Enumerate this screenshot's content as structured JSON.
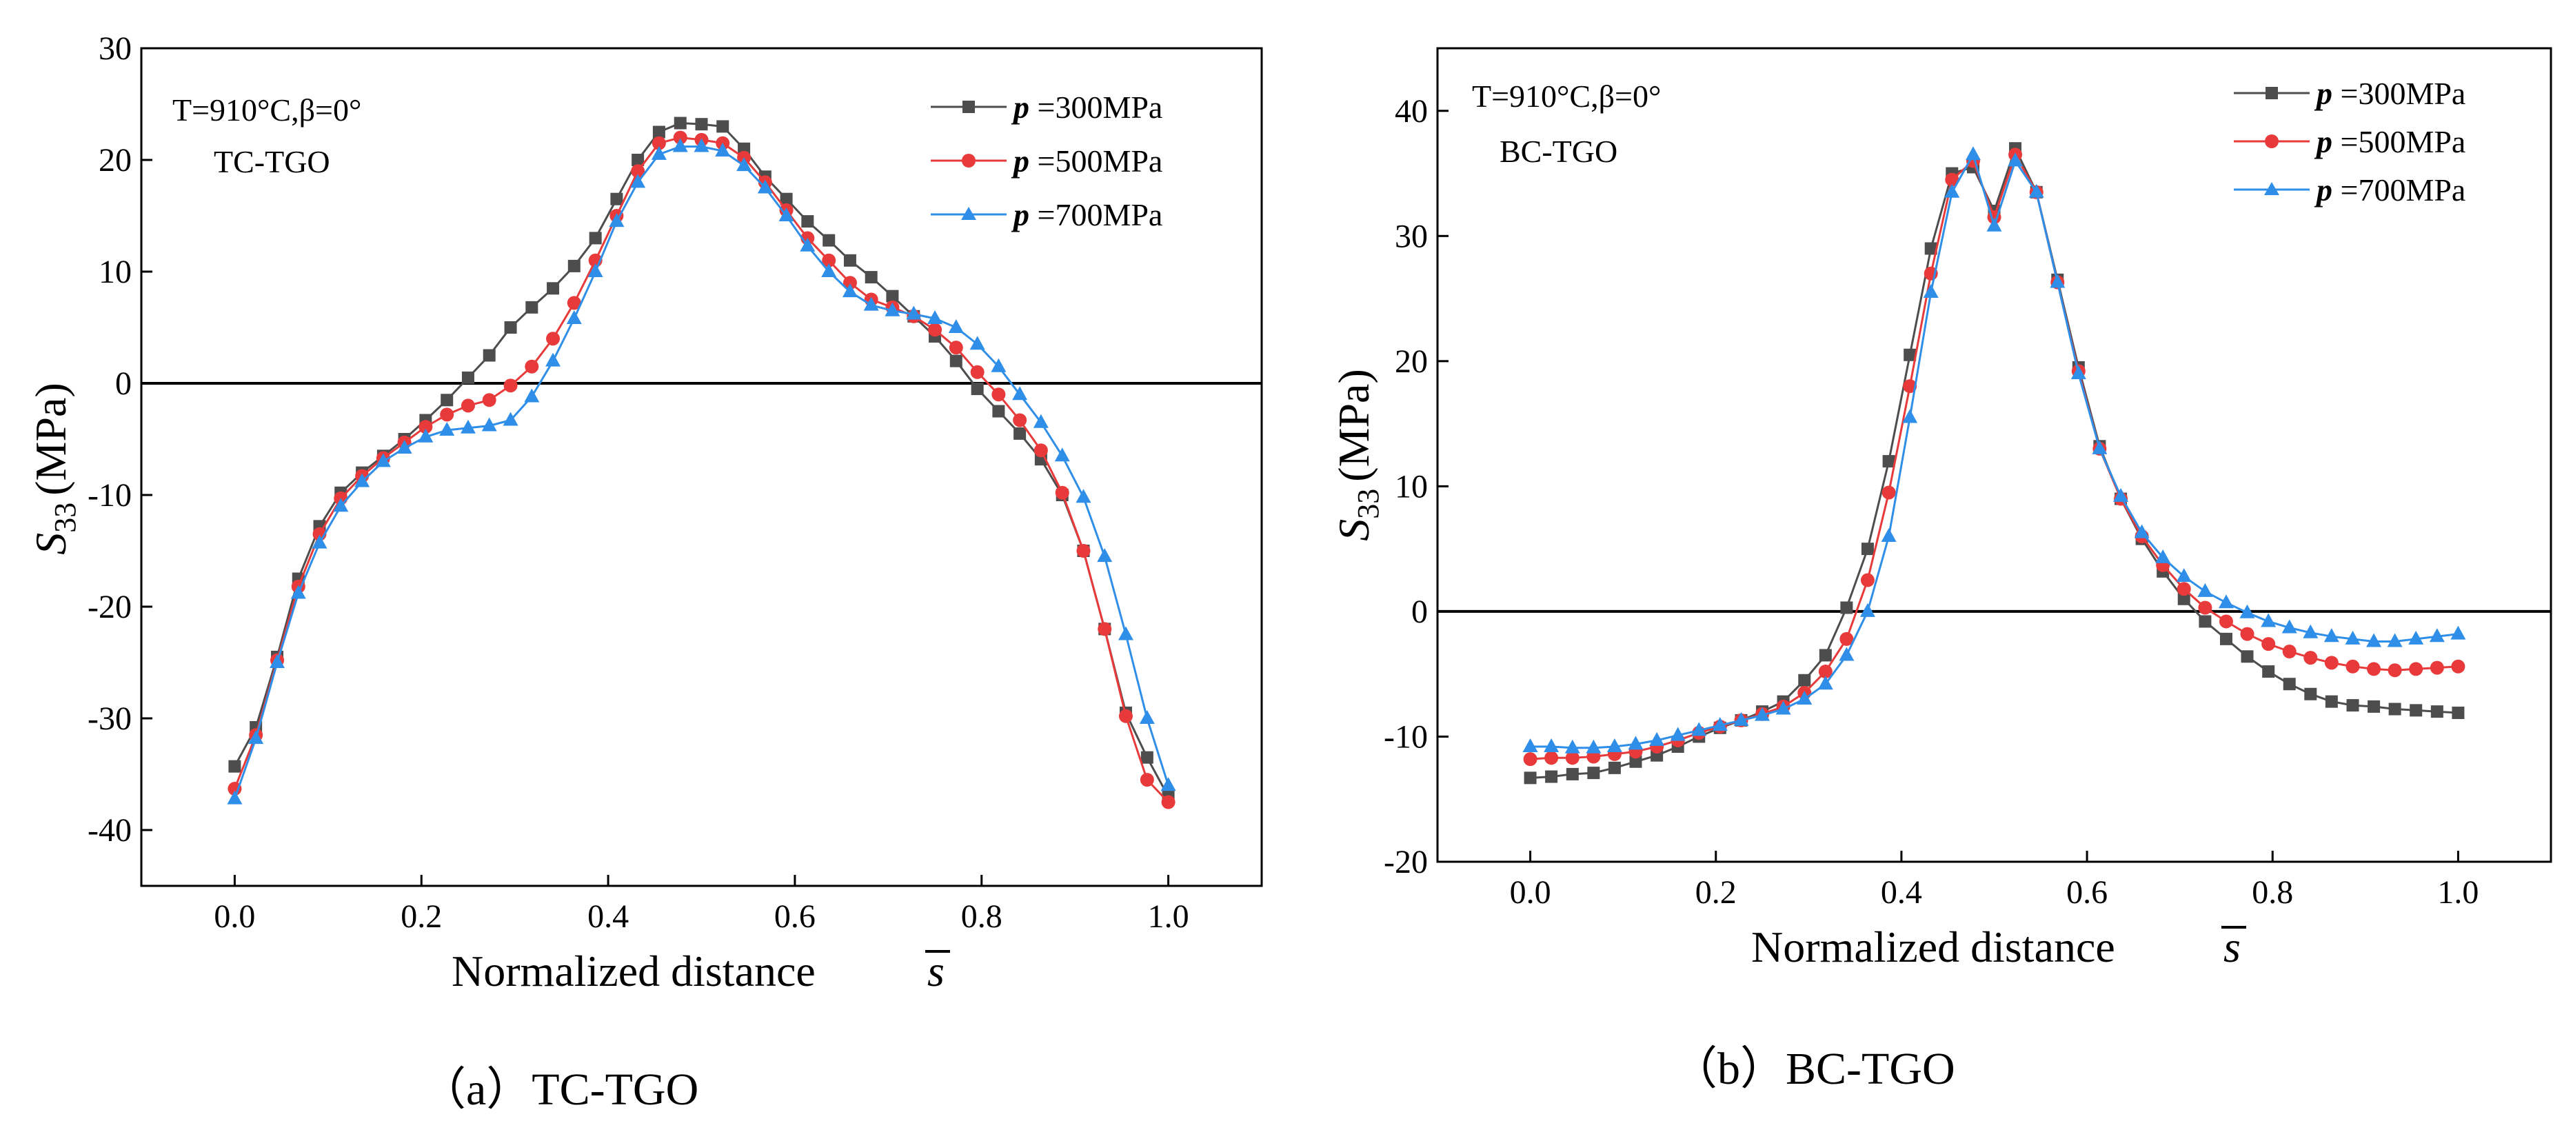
{
  "chart_data": [
    {
      "type": "line",
      "caption": "（a）TC-TGO",
      "title": "",
      "annotation": {
        "condition": "T=910°C,β=0°",
        "label": "TC-TGO"
      },
      "xlabel": "Normalized distance",
      "xsymbol": "s",
      "ylabel_symbol": "S",
      "ylabel_sub": "33",
      "ylabel_unit": "(MPa)",
      "xlim": [
        -0.1,
        1.1
      ],
      "ylim": [
        -45,
        30
      ],
      "xticks": [
        0.0,
        0.2,
        0.4,
        0.6,
        0.8,
        1.0
      ],
      "xtick_labels": [
        "0.0",
        "0.2",
        "0.4",
        "0.6",
        "0.8",
        "1.0"
      ],
      "yticks": [
        -40,
        -30,
        -20,
        -10,
        0,
        10,
        20,
        30
      ],
      "ytick_labels": [
        "-40",
        "-30",
        "-20",
        "-10",
        "0",
        "10",
        "20",
        "30"
      ],
      "reference_line_y": 0,
      "legend_position": "top-right",
      "x": [
        0.0,
        0.0227,
        0.0455,
        0.0682,
        0.0909,
        0.1136,
        0.1364,
        0.1591,
        0.1818,
        0.2045,
        0.2273,
        0.25,
        0.2727,
        0.2955,
        0.3182,
        0.3409,
        0.3636,
        0.3864,
        0.4091,
        0.4318,
        0.4545,
        0.4773,
        0.5,
        0.5227,
        0.5455,
        0.5682,
        0.5909,
        0.6136,
        0.6364,
        0.6591,
        0.6818,
        0.7045,
        0.7273,
        0.75,
        0.7727,
        0.7955,
        0.8182,
        0.8409,
        0.8636,
        0.8864,
        0.9091,
        0.9318,
        0.9545,
        0.9773,
        1.0
      ],
      "series": [
        {
          "name": "p =300MPa",
          "prefix": "p",
          "suffix": " =300MPa",
          "color": "#4d4d4d",
          "marker": "square",
          "values": [
            -34.3,
            -30.8,
            -24.5,
            -17.5,
            -12.8,
            -9.8,
            -8.0,
            -6.5,
            -5.0,
            -3.3,
            -1.5,
            0.5,
            2.5,
            5.0,
            6.8,
            8.5,
            10.5,
            13.0,
            16.5,
            20.0,
            22.5,
            23.3,
            23.2,
            23.0,
            21.0,
            18.5,
            16.5,
            14.5,
            12.8,
            11.0,
            9.5,
            7.8,
            6.0,
            4.2,
            2.0,
            -0.5,
            -2.5,
            -4.5,
            -6.8,
            -10.0,
            -15.0,
            -22.0,
            -29.5,
            -33.5,
            -37.0
          ]
        },
        {
          "name": "p =500MPa",
          "prefix": "p",
          "suffix": " =500MPa",
          "color": "#e83a3a",
          "marker": "circle",
          "values": [
            -36.3,
            -31.5,
            -24.8,
            -18.2,
            -13.5,
            -10.3,
            -8.3,
            -6.7,
            -5.3,
            -3.9,
            -2.8,
            -2.0,
            -1.5,
            -0.2,
            1.5,
            4.0,
            7.2,
            11.0,
            15.0,
            19.0,
            21.5,
            22.0,
            21.8,
            21.5,
            20.2,
            18.0,
            15.5,
            13.0,
            11.0,
            9.0,
            7.5,
            6.8,
            6.0,
            4.8,
            3.2,
            1.0,
            -1.0,
            -3.3,
            -6.0,
            -9.8,
            -15.0,
            -22.0,
            -29.8,
            -35.5,
            -37.5
          ]
        },
        {
          "name": "p =700MPa",
          "prefix": "p",
          "suffix": " =700MPa",
          "color": "#2f8fe8",
          "marker": "triangle",
          "values": [
            -37.2,
            -31.8,
            -25.0,
            -18.8,
            -14.3,
            -11.0,
            -8.8,
            -7.0,
            -5.8,
            -4.8,
            -4.2,
            -4.0,
            -3.8,
            -3.3,
            -1.2,
            2.0,
            5.8,
            10.0,
            14.5,
            18.0,
            20.5,
            21.2,
            21.2,
            20.8,
            19.5,
            17.5,
            15.0,
            12.3,
            10.0,
            8.2,
            7.0,
            6.5,
            6.2,
            5.8,
            5.0,
            3.5,
            1.5,
            -1.0,
            -3.5,
            -6.5,
            -10.2,
            -15.5,
            -22.5,
            -30.0,
            -36.0
          ]
        }
      ]
    },
    {
      "type": "line",
      "caption": "（b）BC-TGO",
      "title": "",
      "annotation": {
        "condition": "T=910°C,β=0°",
        "label": "BC-TGO"
      },
      "xlabel": "Normalized distance",
      "xsymbol": "s",
      "ylabel_symbol": "S",
      "ylabel_sub": "33",
      "ylabel_unit": "(MPa)",
      "xlim": [
        -0.1,
        1.1
      ],
      "ylim": [
        -20,
        45
      ],
      "xticks": [
        0.0,
        0.2,
        0.4,
        0.6,
        0.8,
        1.0
      ],
      "xtick_labels": [
        "0.0",
        "0.2",
        "0.4",
        "0.6",
        "0.8",
        "1.0"
      ],
      "yticks": [
        -20,
        -10,
        0,
        10,
        20,
        30,
        40
      ],
      "ytick_labels": [
        "-20",
        "-10",
        "0",
        "10",
        "20",
        "30",
        "40"
      ],
      "reference_line_y": 0,
      "legend_position": "top-right",
      "x": [
        0.0,
        0.0227,
        0.0455,
        0.0682,
        0.0909,
        0.1136,
        0.1364,
        0.1591,
        0.1818,
        0.2045,
        0.2273,
        0.25,
        0.2727,
        0.2955,
        0.3182,
        0.3409,
        0.3636,
        0.3864,
        0.4091,
        0.4318,
        0.4545,
        0.4773,
        0.5,
        0.5227,
        0.5455,
        0.5682,
        0.5909,
        0.6136,
        0.6364,
        0.6591,
        0.6818,
        0.7045,
        0.7273,
        0.75,
        0.7727,
        0.7955,
        0.8182,
        0.8409,
        0.8636,
        0.8864,
        0.9091,
        0.9318,
        0.9545,
        0.9773,
        1.0
      ],
      "series": [
        {
          "name": "p =300MPa",
          "prefix": "p",
          "suffix": " =300MPa",
          "color": "#4d4d4d",
          "marker": "square",
          "values": [
            -13.3,
            -13.2,
            -13.0,
            -12.9,
            -12.5,
            -12.0,
            -11.5,
            -10.8,
            -10.0,
            -9.3,
            -8.7,
            -8.0,
            -7.2,
            -5.5,
            -3.5,
            0.3,
            5.0,
            12.0,
            20.5,
            29.0,
            35.0,
            35.5,
            32.0,
            37.0,
            33.5,
            26.5,
            19.5,
            13.2,
            9.0,
            5.8,
            3.2,
            1.0,
            -0.8,
            -2.2,
            -3.6,
            -4.8,
            -5.8,
            -6.6,
            -7.2,
            -7.5,
            -7.6,
            -7.8,
            -7.9,
            -8.0,
            -8.1
          ]
        },
        {
          "name": "p =500MPa",
          "prefix": "p",
          "suffix": " =500MPa",
          "color": "#e83a3a",
          "marker": "circle",
          "values": [
            -11.8,
            -11.7,
            -11.7,
            -11.6,
            -11.4,
            -11.2,
            -10.8,
            -10.3,
            -9.7,
            -9.2,
            -8.7,
            -8.2,
            -7.6,
            -6.5,
            -4.8,
            -2.2,
            2.5,
            9.5,
            18.0,
            27.0,
            34.5,
            36.0,
            31.5,
            36.5,
            33.5,
            26.3,
            19.2,
            13.0,
            9.0,
            6.0,
            3.7,
            1.8,
            0.3,
            -0.8,
            -1.8,
            -2.6,
            -3.2,
            -3.7,
            -4.1,
            -4.4,
            -4.6,
            -4.7,
            -4.6,
            -4.5,
            -4.4
          ]
        },
        {
          "name": "p =700MPa",
          "prefix": "p",
          "suffix": " =700MPa",
          "color": "#2f8fe8",
          "marker": "triangle",
          "values": [
            -10.8,
            -10.8,
            -10.9,
            -10.9,
            -10.8,
            -10.6,
            -10.3,
            -9.9,
            -9.5,
            -9.1,
            -8.7,
            -8.3,
            -7.8,
            -7.0,
            -5.8,
            -3.5,
            0.0,
            6.0,
            15.5,
            25.5,
            33.5,
            36.5,
            30.8,
            36.0,
            33.5,
            26.3,
            19.0,
            13.0,
            9.2,
            6.3,
            4.3,
            2.8,
            1.6,
            0.7,
            -0.1,
            -0.8,
            -1.3,
            -1.7,
            -2.0,
            -2.2,
            -2.4,
            -2.4,
            -2.2,
            -2.0,
            -1.8
          ]
        }
      ]
    }
  ]
}
